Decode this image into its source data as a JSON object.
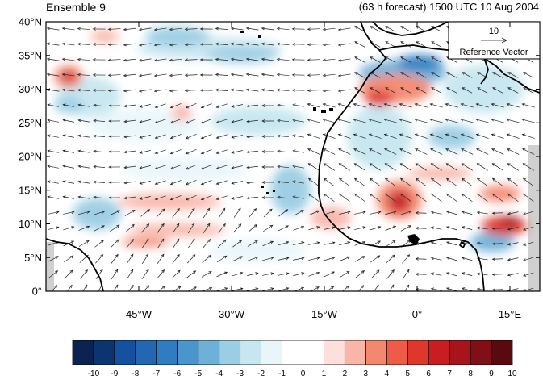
{
  "title_left": "Ensemble 9",
  "title_right": "(63 h forecast) 1500 UTC 10 Aug 2004",
  "lat_labels": [
    "40°N",
    "35°N",
    "30°N",
    "25°N",
    "20°N",
    "15°N",
    "10°N",
    "5°N",
    "0°"
  ],
  "lon_labels": [
    "45°W",
    "30°W",
    "15°W",
    "0°",
    "15°E"
  ],
  "reference_vector": {
    "magnitude": "10",
    "label": "Reference Vector"
  },
  "colorbar": {
    "labels": [
      "-10",
      "-9",
      "-8",
      "-7",
      "-6",
      "-5",
      "-4",
      "-3",
      "-2",
      "-1",
      "0",
      "1",
      "2",
      "3",
      "4",
      "5",
      "6",
      "7",
      "8",
      "9",
      "10"
    ],
    "colors": [
      "#0b2350",
      "#0a3570",
      "#1650a0",
      "#2366b2",
      "#2f7cc0",
      "#4a95cc",
      "#6fb0d8",
      "#9bcde4",
      "#c6e6f0",
      "#e8f6fb",
      "#ffffff",
      "#ffffff",
      "#fde0dc",
      "#f9b5a8",
      "#f4886f",
      "#ee5c48",
      "#e0372c",
      "#c81e22",
      "#a8141b",
      "#801015",
      "#5a0a0e"
    ]
  },
  "colors": {
    "land_outline": "#000000",
    "vector": "#222222",
    "grid_frame": "#000000"
  }
}
